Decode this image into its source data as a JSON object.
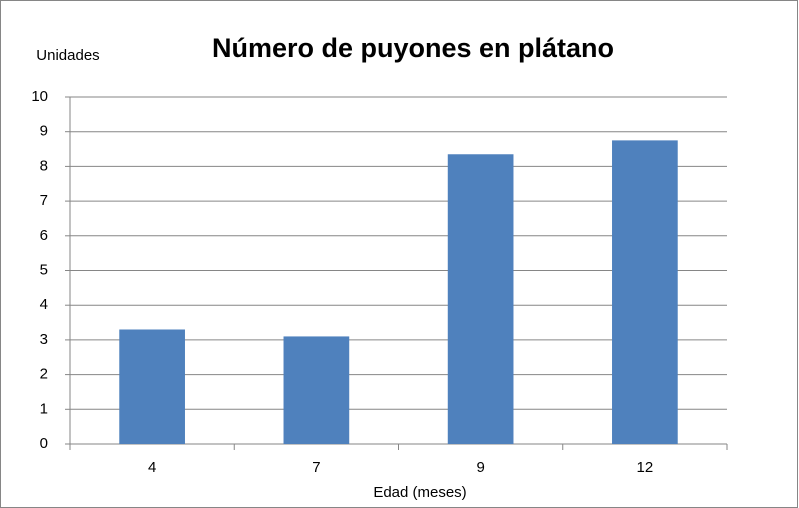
{
  "chart_data": {
    "type": "bar",
    "title": "Número de puyones en plátano",
    "y_label": "Unidades",
    "x_label": "Edad (meses)",
    "categories": [
      "4",
      "7",
      "9",
      "12"
    ],
    "values": [
      3.3,
      3.1,
      8.35,
      8.75
    ],
    "color": "#4f81bd",
    "ylim": [
      0,
      10
    ],
    "yticks": [
      0,
      1,
      2,
      3,
      4,
      5,
      6,
      7,
      8,
      9,
      10
    ],
    "grid": true
  }
}
